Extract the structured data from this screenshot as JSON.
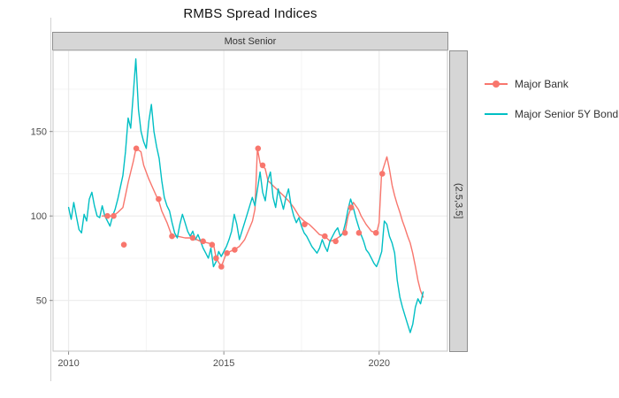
{
  "title": "RMBS Spread Indices",
  "facet": {
    "top_strip": "Most Senior",
    "right_strip": "(2.5,3.5]"
  },
  "legend": {
    "items": [
      {
        "label": "Major Bank",
        "color": "#F8766D",
        "has_point": true
      },
      {
        "label": "Major Senior 5Y Bond",
        "color": "#00BFC4",
        "has_point": false
      }
    ]
  },
  "colors": {
    "salmon": "#F8766D",
    "teal": "#00BFC4",
    "strip_bg": "#d6d6d6",
    "strip_border": "#8f8f8f",
    "panel_border": "#c4c4c4",
    "grid_major": "#ececec",
    "grid_minor": "#f4f4f4",
    "tick_text": "#4d4d4d"
  },
  "chart_data": {
    "type": "line",
    "title": "RMBS Spread Indices",
    "facet_col": "Most Senior",
    "facet_row": "(2.5,3.5]",
    "xlabel": "",
    "ylabel": "",
    "legend_position": "right",
    "grid": true,
    "x_domain": [
      2009.5,
      2022.2
    ],
    "y_domain": [
      20,
      198
    ],
    "x_ticks": [
      2010,
      2015,
      2020
    ],
    "x_tick_labels": [
      "2010",
      "2015",
      "2020"
    ],
    "y_ticks": [
      50,
      100,
      150
    ],
    "y_tick_labels": [
      "50",
      "100",
      "150"
    ],
    "x_minor": [
      2012.5,
      2017.5
    ],
    "y_minor": [
      75,
      125,
      175
    ],
    "series": [
      {
        "name": "Major Bank",
        "color": "#F8766D",
        "x": [
          2011.08,
          2011.25,
          2011.42,
          2011.58,
          2011.75,
          2011.83,
          2011.92,
          2012.0,
          2012.08,
          2012.17,
          2012.33,
          2012.42,
          2012.58,
          2012.75,
          2012.92,
          2013.0,
          2013.17,
          2013.33,
          2013.5,
          2013.75,
          2014.0,
          2014.25,
          2014.5,
          2014.67,
          2014.75,
          2014.92,
          2015.0,
          2015.08,
          2015.33,
          2015.5,
          2015.67,
          2015.83,
          2015.92,
          2016.0,
          2016.08,
          2016.17,
          2016.33,
          2016.42,
          2016.58,
          2016.75,
          2016.92,
          2017.08,
          2017.25,
          2017.42,
          2017.58,
          2017.75,
          2017.92,
          2018.08,
          2018.25,
          2018.42,
          2018.58,
          2018.75,
          2018.92,
          2019.0,
          2019.08,
          2019.17,
          2019.33,
          2019.42,
          2019.58,
          2019.75,
          2019.92,
          2020.0,
          2020.08,
          2020.25,
          2020.33,
          2020.42,
          2020.5,
          2020.58,
          2020.67,
          2020.75,
          2020.83,
          2020.92,
          2021.0,
          2021.08,
          2021.17,
          2021.25,
          2021.33,
          2021.42
        ],
        "y": [
          100,
          100,
          100,
          102,
          105,
          112,
          120,
          126,
          132,
          140,
          138,
          130,
          122,
          115,
          108,
          103,
          96,
          88,
          88,
          87,
          87,
          85,
          84,
          83,
          75,
          70,
          74,
          78,
          80,
          82,
          86,
          93,
          97,
          104,
          140,
          131,
          128,
          121,
          118,
          115,
          112,
          109,
          105,
          100,
          97,
          95,
          92,
          89,
          88,
          85,
          86,
          88,
          92,
          100,
          104,
          108,
          104,
          100,
          95,
          91,
          90,
          96,
          125,
          135,
          128,
          118,
          112,
          107,
          102,
          97,
          93,
          88,
          84,
          78,
          70,
          62,
          56,
          52
        ]
      },
      {
        "name": "Major Senior 5Y Bond",
        "color": "#00BFC4",
        "x_start": 2010.0,
        "x_step": 0.083333,
        "y": [
          105,
          98,
          108,
          100,
          92,
          90,
          101,
          97,
          110,
          114,
          106,
          100,
          99,
          106,
          100,
          97,
          94,
          100,
          104,
          110,
          117,
          124,
          138,
          158,
          152,
          172,
          193,
          163,
          150,
          144,
          140,
          156,
          166,
          150,
          141,
          134,
          121,
          111,
          106,
          103,
          96,
          90,
          87,
          95,
          101,
          96,
          91,
          88,
          91,
          86,
          89,
          85,
          81,
          78,
          75,
          81,
          70,
          73,
          79,
          76,
          79,
          82,
          86,
          91,
          101,
          95,
          86,
          91,
          96,
          101,
          106,
          111,
          106,
          116,
          126,
          114,
          109,
          121,
          126,
          111,
          105,
          116,
          110,
          104,
          111,
          116,
          106,
          100,
          96,
          99,
          94,
          90,
          88,
          85,
          82,
          80,
          78,
          81,
          86,
          82,
          79,
          85,
          88,
          91,
          93,
          88,
          90,
          96,
          104,
          110,
          105,
          99,
          94,
          89,
          85,
          80,
          78,
          75,
          72,
          70,
          74,
          79,
          97,
          95,
          88,
          84,
          78,
          62,
          52,
          46,
          41,
          36,
          31,
          36,
          46,
          51,
          48,
          55
        ]
      }
    ],
    "points": {
      "name": "Major Bank markers",
      "color": "#F8766D",
      "x": [
        2011.25,
        2011.45,
        2011.78,
        2012.18,
        2012.9,
        2013.33,
        2014.0,
        2014.33,
        2014.62,
        2014.75,
        2014.92,
        2015.1,
        2015.35,
        2016.1,
        2016.25,
        2017.6,
        2018.25,
        2018.6,
        2018.9,
        2019.1,
        2019.35,
        2019.9,
        2020.1
      ],
      "y": [
        100,
        100,
        83,
        140,
        110,
        88,
        87,
        85,
        83,
        75,
        70,
        78,
        80,
        140,
        130,
        95,
        88,
        85,
        90,
        105,
        90,
        90,
        125
      ]
    }
  }
}
